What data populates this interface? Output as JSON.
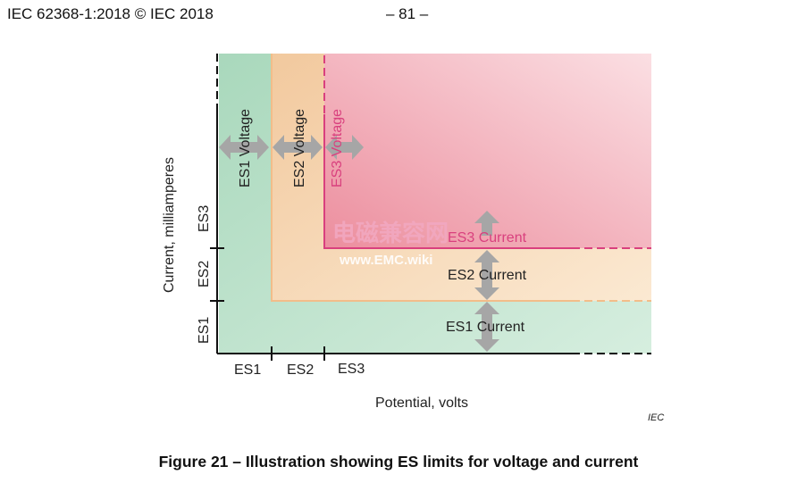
{
  "header": {
    "standard": "IEC 62368-1:2018 © IEC 2018",
    "page": "– 81 –"
  },
  "figure": {
    "voltage_labels": [
      "ES1 Voltage",
      "ES2 Voltage",
      "ES3 Voltage"
    ],
    "current_labels": [
      "ES1 Current",
      "ES2 Current",
      "ES3 Current"
    ],
    "x_ticks": [
      "ES1",
      "ES2",
      "ES3"
    ],
    "y_ticks": [
      "ES1",
      "ES2",
      "ES3"
    ],
    "x_axis_label": "Potential, volts",
    "y_axis_label": "Current, milliamperes",
    "watermark_cn": "电磁兼容网",
    "watermark_url": "www.EMC.wiki",
    "iec_mark": "IEC",
    "colors": {
      "es1": "#bfe2cc",
      "es2": "#f7dcb6",
      "es3": "#f1a6b1",
      "es3_line": "#d9407e",
      "arrow": "#a6a6a6"
    }
  },
  "caption": "Figure 21 – Illustration showing ES limits for voltage and current"
}
